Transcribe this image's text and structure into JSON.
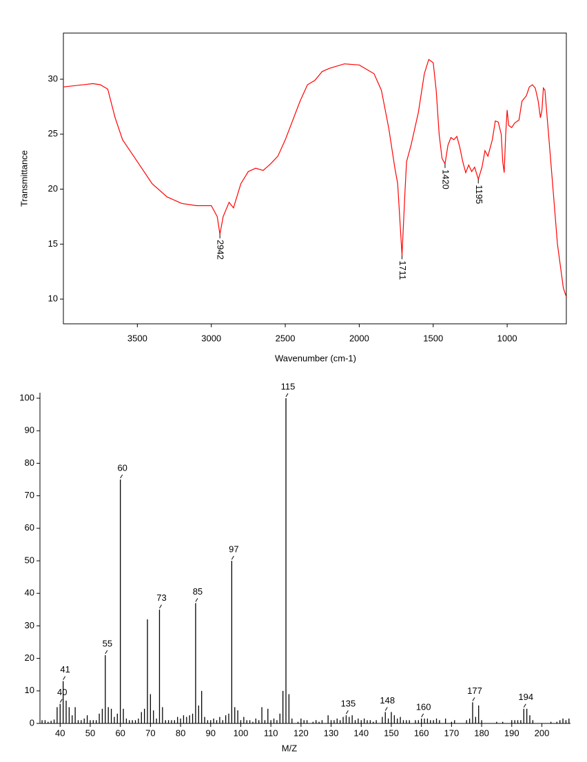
{
  "chart_data": [
    {
      "type": "line",
      "xlabel": "Wavenumber (cm-1)",
      "ylabel": "Transmittance",
      "xlim": [
        4000,
        600
      ],
      "ylim": [
        7.75,
        34.2
      ],
      "xticks": [
        3500,
        3000,
        2500,
        2000,
        1500,
        1000
      ],
      "yticks": [
        10,
        15,
        20,
        25,
        30
      ],
      "series": [
        {
          "color": "#ff0000",
          "x": [
            4000,
            3800,
            3750,
            3700,
            3650,
            3600,
            3550,
            3500,
            3400,
            3300,
            3200,
            3100,
            3000,
            2960,
            2942,
            2920,
            2880,
            2850,
            2800,
            2750,
            2700,
            2650,
            2600,
            2550,
            2500,
            2400,
            2350,
            2300,
            2250,
            2200,
            2100,
            2000,
            1900,
            1850,
            1800,
            1760,
            1740,
            1711,
            1690,
            1680,
            1650,
            1600,
            1560,
            1530,
            1500,
            1480,
            1460,
            1440,
            1420,
            1400,
            1380,
            1360,
            1340,
            1320,
            1300,
            1280,
            1260,
            1240,
            1220,
            1195,
            1170,
            1150,
            1130,
            1100,
            1080,
            1060,
            1040,
            1030,
            1020,
            1010,
            1000,
            990,
            970,
            950,
            920,
            900,
            870,
            850,
            830,
            810,
            790,
            775,
            765,
            755,
            745,
            720,
            690,
            660,
            620,
            600
          ],
          "values": [
            29.3,
            29.6,
            29.5,
            29.1,
            26.5,
            24.5,
            23.5,
            22.5,
            20.5,
            19.3,
            18.7,
            18.5,
            18.5,
            17.5,
            15.9,
            17.5,
            18.8,
            18.3,
            20.5,
            21.6,
            21.9,
            21.7,
            22.3,
            23.0,
            24.5,
            28.0,
            29.5,
            29.9,
            30.7,
            31.0,
            31.4,
            31.3,
            30.5,
            29.0,
            25.5,
            22.0,
            20.5,
            14.0,
            20.0,
            22.5,
            24.0,
            27.0,
            30.5,
            31.8,
            31.5,
            29.0,
            25.0,
            22.8,
            22.3,
            24.0,
            24.7,
            24.5,
            24.8,
            23.8,
            22.5,
            21.5,
            22.2,
            21.6,
            22.0,
            20.9,
            22.0,
            23.5,
            23.0,
            24.5,
            26.2,
            26.1,
            25.0,
            22.5,
            21.5,
            25.0,
            27.2,
            25.8,
            25.6,
            26.0,
            26.3,
            28.0,
            28.5,
            29.3,
            29.5,
            29.2,
            28.0,
            26.5,
            27.2,
            29.2,
            29.0,
            25.0,
            20.0,
            15.0,
            11.0,
            10.2
          ]
        }
      ],
      "annotations": [
        {
          "x": 2942,
          "y": 15.9
        },
        {
          "x": 1711,
          "y": 14.0
        },
        {
          "x": 1420,
          "y": 22.3
        },
        {
          "x": 1195,
          "y": 20.9
        }
      ]
    },
    {
      "type": "bar",
      "xlabel": "M/Z",
      "xlim": [
        33.3,
        209.5
      ],
      "ylim": [
        0,
        100
      ],
      "xticks": [
        40,
        50,
        60,
        70,
        80,
        90,
        100,
        110,
        120,
        130,
        140,
        150,
        160,
        170,
        180,
        190,
        200
      ],
      "yticks": [
        0,
        10,
        20,
        30,
        40,
        50,
        60,
        70,
        80,
        90,
        100
      ],
      "color": "#000000",
      "x": [
        34,
        35,
        36,
        37,
        38,
        39,
        40,
        41,
        42,
        43,
        44,
        45,
        46,
        47,
        48,
        49,
        50,
        51,
        52,
        53,
        54,
        55,
        56,
        57,
        58,
        59,
        60,
        61,
        62,
        63,
        64,
        65,
        66,
        67,
        68,
        69,
        70,
        71,
        72,
        73,
        74,
        75,
        76,
        77,
        78,
        79,
        80,
        81,
        82,
        83,
        84,
        85,
        86,
        87,
        88,
        89,
        90,
        91,
        92,
        93,
        94,
        95,
        96,
        97,
        98,
        99,
        100,
        101,
        102,
        103,
        104,
        105,
        106,
        107,
        108,
        109,
        110,
        111,
        112,
        113,
        114,
        115,
        116,
        117,
        119,
        120,
        121,
        122,
        124,
        125,
        126,
        127,
        129,
        130,
        131,
        132,
        133,
        134,
        135,
        136,
        137,
        138,
        139,
        140,
        141,
        142,
        143,
        144,
        145,
        147,
        148,
        149,
        150,
        151,
        152,
        153,
        154,
        155,
        156,
        158,
        159,
        160,
        161,
        162,
        163,
        164,
        165,
        166,
        168,
        170,
        171,
        175,
        176,
        177,
        178,
        179,
        180,
        185,
        187,
        190,
        191,
        192,
        193,
        194,
        195,
        196,
        197,
        203,
        205,
        206,
        207,
        208,
        209
      ],
      "values": [
        1,
        1,
        0.5,
        0.8,
        1.2,
        5,
        6,
        13,
        7,
        5,
        2.5,
        5,
        1,
        1,
        1.5,
        2.5,
        1,
        1,
        1,
        3,
        4.5,
        21,
        5,
        4.5,
        2,
        3,
        75,
        4.5,
        1.5,
        1,
        1,
        1,
        1.5,
        3.5,
        4.5,
        32,
        9,
        4,
        1.5,
        35,
        5,
        1,
        1,
        1,
        1,
        2,
        1.5,
        2.5,
        2,
        2.5,
        3,
        37,
        5.5,
        10,
        2,
        1,
        1,
        1.5,
        1,
        2,
        1,
        2.5,
        3,
        50,
        5,
        4,
        1,
        2,
        1,
        1,
        0.5,
        1.5,
        1,
        5,
        1,
        4.5,
        1,
        1.5,
        1,
        3,
        10,
        100,
        9,
        1.5,
        0.5,
        1.5,
        1,
        1,
        0.5,
        1,
        0.5,
        1,
        2.5,
        1,
        1,
        1.5,
        1,
        2,
        2.5,
        2,
        2.5,
        1,
        1.5,
        1,
        1.5,
        1,
        1,
        0.5,
        1,
        2,
        3.5,
        1.5,
        3.5,
        2.5,
        1.5,
        2,
        1,
        1,
        1,
        1,
        1,
        1.5,
        1.5,
        1.5,
        1,
        1,
        1.5,
        1,
        1.5,
        0.5,
        1,
        1,
        1.5,
        6.5,
        2,
        5.5,
        1,
        0.5,
        0.5,
        1,
        1,
        1,
        1,
        4.5,
        4.5,
        2.5,
        1,
        0.5,
        0.5,
        1,
        1.5,
        1,
        1.5
      ],
      "annotations": [
        40,
        41,
        55,
        60,
        73,
        85,
        97,
        115,
        135,
        148,
        160,
        177,
        194
      ]
    }
  ]
}
